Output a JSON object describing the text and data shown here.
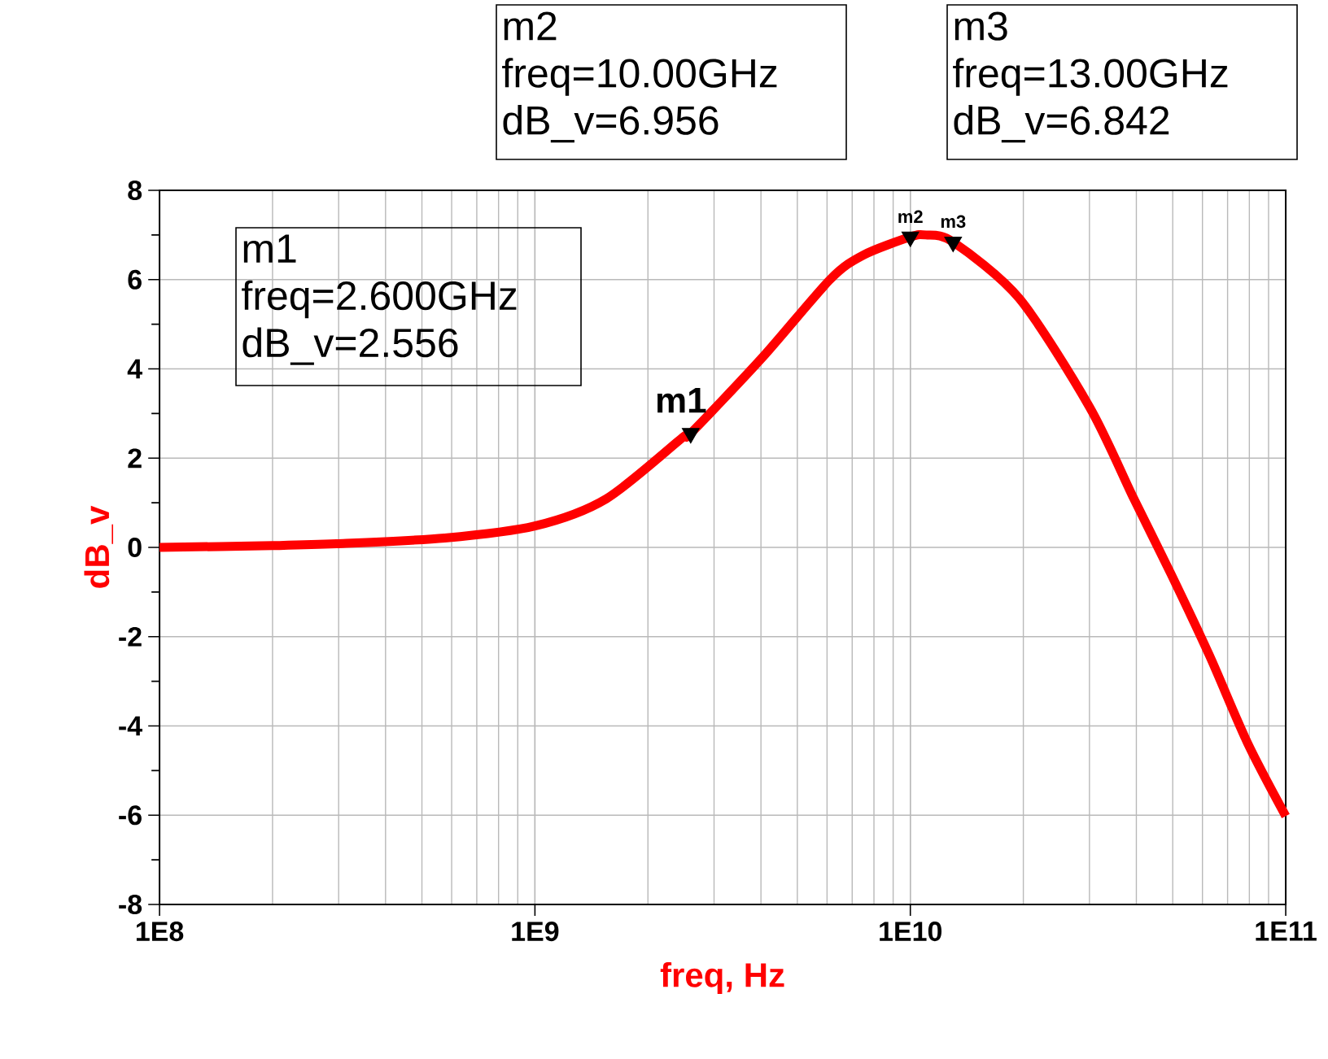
{
  "chart_data": {
    "type": "line",
    "xlabel": "freq, Hz",
    "ylabel": "dB_v",
    "log": "x",
    "grid": true,
    "marker": "none",
    "xlim": [
      100000000,
      100000000000
    ],
    "ylim": [
      -8,
      8
    ],
    "xticks": [
      {
        "value": 100000000,
        "label": "1E8"
      },
      {
        "value": 1000000000,
        "label": "1E9"
      },
      {
        "value": 10000000000,
        "label": "1E10"
      },
      {
        "value": 100000000000,
        "label": "1E11"
      }
    ],
    "yticks": [
      -8,
      {
        "value": -7,
        "label": null
      },
      -6,
      {
        "value": -5,
        "label": null
      },
      -4,
      {
        "value": -3,
        "label": null
      },
      -2,
      {
        "value": -1,
        "label": null
      },
      0,
      {
        "value": 1,
        "label": null
      },
      2,
      {
        "value": 3,
        "label": null
      },
      4,
      {
        "value": 5,
        "label": null
      },
      6,
      {
        "value": 7,
        "label": null
      },
      8
    ],
    "series": [
      {
        "color": "#ff0000",
        "x": [
          100000000,
          200000000,
          296000000,
          575000000,
          1000000000,
          1550000000,
          2490000000,
          2600000000,
          4030000000,
          6110000000,
          7500000000,
          10000000000,
          11000000000,
          13000000000,
          19500000000,
          30000000000,
          39400000000,
          49500000000,
          62700000000,
          79100000000,
          100000000000
        ],
        "values": [
          0.0,
          0.04,
          0.08,
          0.21,
          0.48,
          1.09,
          2.48,
          2.556,
          4.25,
          6.0,
          6.55,
          6.956,
          7.0,
          6.842,
          5.58,
          3.15,
          1.09,
          -0.6,
          -2.43,
          -4.38,
          -6.02
        ]
      },
      {
        "type": "scatter",
        "marker": "triangle",
        "color": "#000000",
        "x": [
          2600000000,
          10000000000,
          13000000000
        ],
        "values": [
          2.556,
          6.956,
          6.842
        ]
      }
    ],
    "annotations": [
      {
        "text": "m1",
        "x": 2600000000,
        "y": 2.556
      },
      {
        "text": "m2",
        "x": 10000000000,
        "y": 6.956
      },
      {
        "text": "m3",
        "x": 13000000000,
        "y": 6.842
      },
      "m1",
      "freq=2.600GHz",
      "dB_v=2.556",
      "m2",
      "freq=10.00GHz",
      "dB_v=6.956",
      "m3",
      "freq=13.00GHz",
      "dB_v=6.842"
    ]
  }
}
